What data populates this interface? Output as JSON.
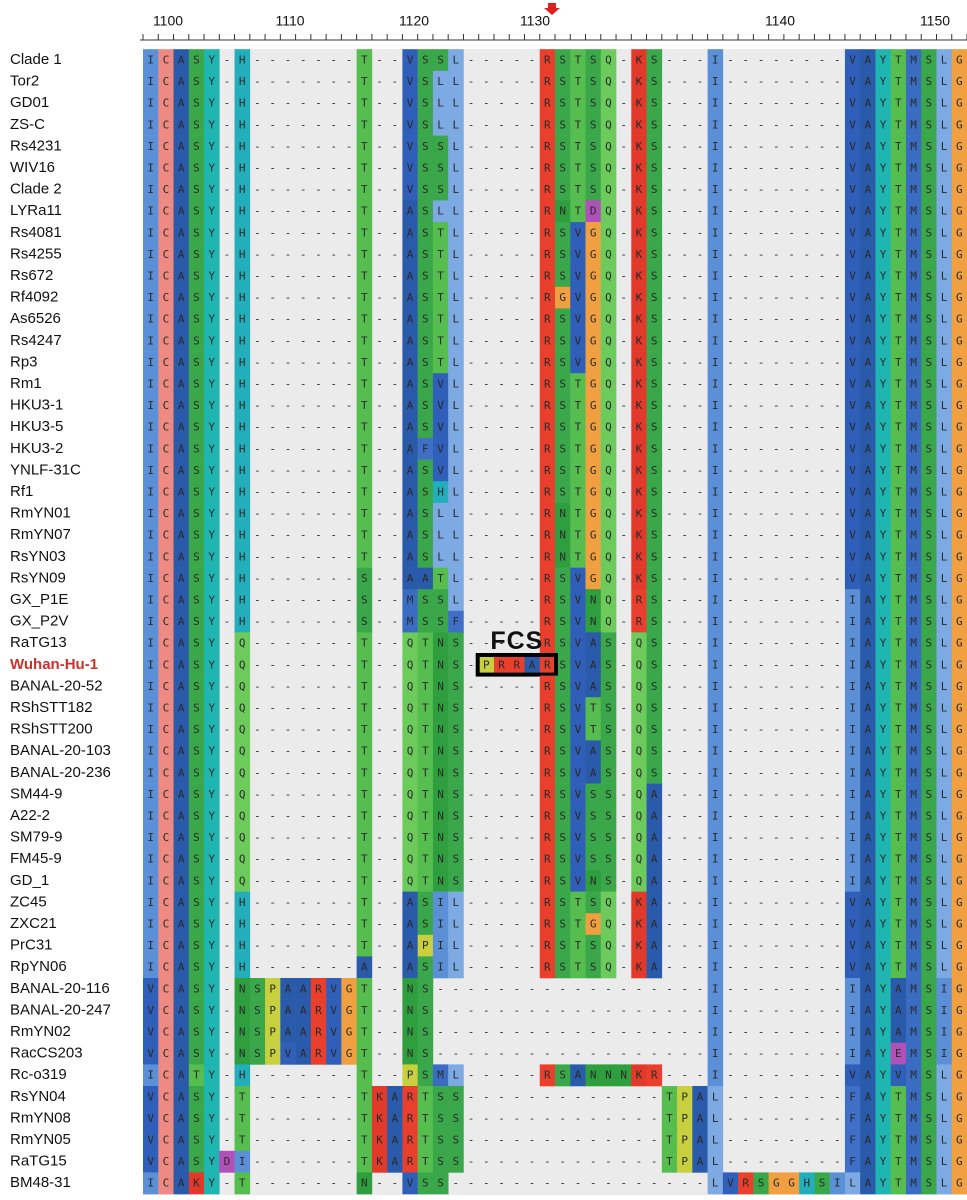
{
  "ruler": {
    "labels": [
      "1100",
      "1110",
      "1120",
      "1130",
      "1140",
      "1150"
    ]
  },
  "annotation": {
    "fcs": "FCS"
  },
  "rows": [
    {
      "name": "Clade 1",
      "sequence": "ICASY-H-------T--VSSL-----RSTSQ-KS---I--------VAYTMSLG"
    },
    {
      "name": "Tor2",
      "sequence": "ICASY-H-------T--VSLL-----RSTSQ-KS---I--------VAYTMSLG"
    },
    {
      "name": "GD01",
      "sequence": "ICASY-H-------T--VSLL-----RSTSQ-KS---I--------VAYTMSLG"
    },
    {
      "name": "ZS-C",
      "sequence": "ICASY-H-------T--VSLL-----RSTSQ-KS---I--------VAYTMSLG"
    },
    {
      "name": "Rs4231",
      "sequence": "ICASY-H-------T--VSSL-----RSTSQ-KS---I--------VAYTMSLG"
    },
    {
      "name": "WIV16",
      "sequence": "ICASY-H-------T--VSSL-----RSTSQ-KS---I--------VAYTMSLG"
    },
    {
      "name": "Clade 2",
      "sequence": "ICASY-H-------T--VSSL-----RSTSQ-KS---I--------VAYTMSLG"
    },
    {
      "name": "LYRa11",
      "sequence": "ICASY-H-------T--ASLL-----RNTDQ-KS---I--------VAYTMSLG"
    },
    {
      "name": "Rs4081",
      "sequence": "ICASY-H-------T--ASTL-----RSVGQ-KS---I--------VAYTMSLG"
    },
    {
      "name": "Rs4255",
      "sequence": "ICASY-H-------T--ASTL-----RSVGQ-KS---I--------VAYTMSLG"
    },
    {
      "name": "Rs672",
      "sequence": "ICASY-H-------T--ASTL-----RSVGQ-KS---I--------VAYTMSLG"
    },
    {
      "name": "Rf4092",
      "sequence": "ICASY-H-------T--ASTL-----RGVGQ-KS---I--------VAYTMSLG"
    },
    {
      "name": "As6526",
      "sequence": "ICASY-H-------T--ASTL-----RSVGQ-KS---I--------VAYTMSLG"
    },
    {
      "name": "Rs4247",
      "sequence": "ICASY-H-------T--ASTL-----RSVGQ-KS---I--------VAYTMSLG"
    },
    {
      "name": "Rp3",
      "sequence": "ICASY-H-------T--ASTL-----RSVGQ-KS---I--------VAYTMSLG"
    },
    {
      "name": "Rm1",
      "sequence": "ICASY-H-------T--ASVL-----RSTGQ-KS---I--------VAYTMSLG"
    },
    {
      "name": "HKU3-1",
      "sequence": "ICASY-H-------T--ASVL-----RSTGQ-KS---I--------VAYTMSLG"
    },
    {
      "name": "HKU3-5",
      "sequence": "ICASY-H-------T--ASVL-----RSTGQ-KS---I--------VAYTMSLG"
    },
    {
      "name": "HKU3-2",
      "sequence": "ICASY-H-------T--AFVL-----RSTGQ-KS---I--------VAYTMSLG"
    },
    {
      "name": "YNLF-31C",
      "sequence": "ICASY-H-------T--ASVL-----RSTGQ-KS---I--------VAYTMSLG"
    },
    {
      "name": "Rf1",
      "sequence": "ICASY-H-------T--ASHL-----RSTGQ-KS---I--------VAYTMSLG"
    },
    {
      "name": "RmYN01",
      "sequence": "ICASY-H-------T--ASLL-----RNTGQ-KS---I--------VAYTMSLG"
    },
    {
      "name": "RmYN07",
      "sequence": "ICASY-H-------T--ASLL-----RNTGQ-KS---I--------VAYTMSLG"
    },
    {
      "name": "RsYN03",
      "sequence": "ICASY-H-------T--ASLL-----RNTGQ-KS---I--------VAYTMSLG"
    },
    {
      "name": "RsYN09",
      "sequence": "ICASY-H-------S--AATL-----RSVGQ-KS---I--------VAYTMSLG"
    },
    {
      "name": "GX_P1E",
      "sequence": "ICASY-H-------S--MSSL-----RSVNQ-RS---I--------IAYTMSLG"
    },
    {
      "name": "GX_P2V",
      "sequence": "ICASY-H-------S--MSSF-----RSVNQ-RS---I--------IAYTMSLG"
    },
    {
      "name": "RaTG13",
      "sequence": "ICASY-Q-------T--QTNS-----RSVAS-QS---I--------IAYTMSLG"
    },
    {
      "name": "Wuhan-Hu-1",
      "highlight": true,
      "sequence": "ICASY-Q-------T--QTNS-PRRARSVAS-QS---I--------IAYTMSLG"
    },
    {
      "name": "BANAL-20-52",
      "sequence": "ICASY-Q-------T--QTNS-----RSVAS-QS---I--------IAYTMSLG"
    },
    {
      "name": "RShSTT182",
      "sequence": "ICASY-Q-------T--QTNS-----RSVTS-QS---I--------IAYTMSLG"
    },
    {
      "name": "RShSTT200",
      "sequence": "ICASY-Q-------T--QTNS-----RSVTS-QS---I--------IAYTMSLG"
    },
    {
      "name": "BANAL-20-103",
      "sequence": "ICASY-Q-------T--QTNS-----RSVAS-QS---I--------IAYTMSLG"
    },
    {
      "name": "BANAL-20-236",
      "sequence": "ICASY-Q-------T--QTNS-----RSVAS-QS---I--------IAYTMSLG"
    },
    {
      "name": "SM44-9",
      "sequence": "ICASY-Q-------T--QTNS-----RSVSS-QA---I--------IAYTMSLG"
    },
    {
      "name": "A22-2",
      "sequence": "ICASY-Q-------T--QTNS-----RSVSS-QA---I--------IAYTMSLG"
    },
    {
      "name": "SM79-9",
      "sequence": "ICASY-Q-------T--QTNS-----RSVSS-QA---I--------IAYTMSLG"
    },
    {
      "name": "FM45-9",
      "sequence": "ICASY-Q-------T--QTNS-----RSVSS-QA---I--------IAYTMSLG"
    },
    {
      "name": "GD_1",
      "sequence": "ICASY-Q-------T--QTNS-----RSVNS-QA---I--------IAYTMSLG"
    },
    {
      "name": "ZC45",
      "sequence": "ICASY-H-------T--ASIL-----RSTSQ-KA---I--------VAYTMSLG"
    },
    {
      "name": "ZXC21",
      "sequence": "ICASY-H-------T--ASIL-----RSTGQ-KA---I--------VAYTMSLG"
    },
    {
      "name": "PrC31",
      "sequence": "ICASY-H-------T--APIL-----RSTSQ-KA---I--------VAYTMSLG"
    },
    {
      "name": "RpYN06",
      "sequence": "ICASY-H-------A--ASIL-----RSTSQ-KA---I--------VAYTMSLG"
    },
    {
      "name": "BANAL-20-116",
      "sequence": "VCASY-NSPAARVGT--NS------------------I--------IAYAMSIG"
    },
    {
      "name": "BANAL-20-247",
      "sequence": "VCASY-NSPAARVGT--NS------------------I--------IAYAMSIG"
    },
    {
      "name": "RmYN02",
      "sequence": "VCASY-NSPAARVGT--NS------------------I--------IAYAMSIG"
    },
    {
      "name": "RacCS203",
      "sequence": "VCASY-NSPVARVGT--NS------------------I--------IAYEMSIG"
    },
    {
      "name": "Rc-o319",
      "sequence": "ICATY-H-------T--PSML-----RSANNNKR---I--------VAYVMSLG"
    },
    {
      "name": "RsYN04",
      "sequence": "VCASY-T-------TKARTSS-------------TPAL--------FAYTMSLG"
    },
    {
      "name": "RmYN08",
      "sequence": "VCASY-T-------TKARTSS-------------TPAL--------FAYTMSLG"
    },
    {
      "name": "RmYN05",
      "sequence": "VCASY-T-------TKARTSS-------------TPAL--------FAYTMSLG"
    },
    {
      "name": "RaTG15",
      "sequence": "VCASYDI-------TKARTSS-------------TPAL--------FAYTMSLG"
    },
    {
      "name": "BM48-31",
      "sequence": "ICAKY-T-------N--VSS-----------------LVRSGGHSILAYTMSLG"
    }
  ]
}
